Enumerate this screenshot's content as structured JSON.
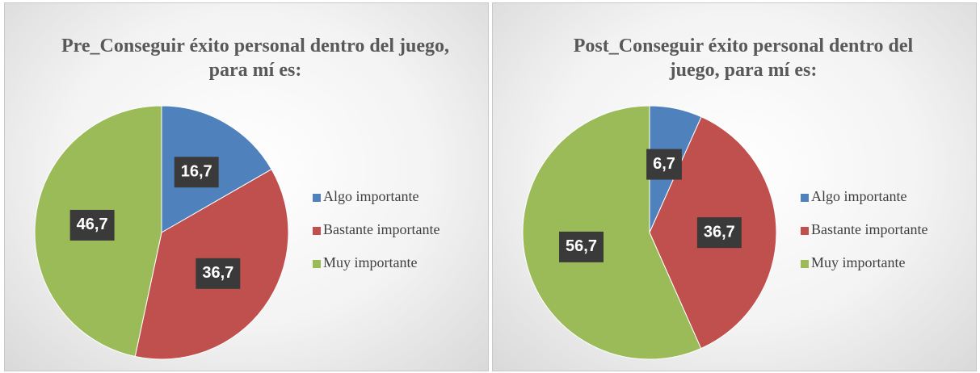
{
  "chart_data": [
    {
      "type": "pie",
      "title": "Pre_Conseguir éxito personal dentro del juego, para mí es:",
      "categories": [
        "Algo importante",
        "Bastante importante",
        "Muy importante"
      ],
      "values": [
        16.7,
        36.7,
        46.7
      ],
      "value_labels": [
        "16,7",
        "36,7",
        "46,7"
      ],
      "colors": [
        "#4f81bd",
        "#c0504d",
        "#9bbb59"
      ],
      "legend": "right"
    },
    {
      "type": "pie",
      "title": "Post_Conseguir éxito personal dentro del juego, para mí es:",
      "categories": [
        "Algo importante",
        "Bastante importante",
        "Muy importante"
      ],
      "values": [
        6.7,
        36.7,
        56.7
      ],
      "value_labels": [
        "6,7",
        "36,7",
        "56,7"
      ],
      "colors": [
        "#4f81bd",
        "#c0504d",
        "#9bbb59"
      ],
      "legend": "right"
    }
  ]
}
